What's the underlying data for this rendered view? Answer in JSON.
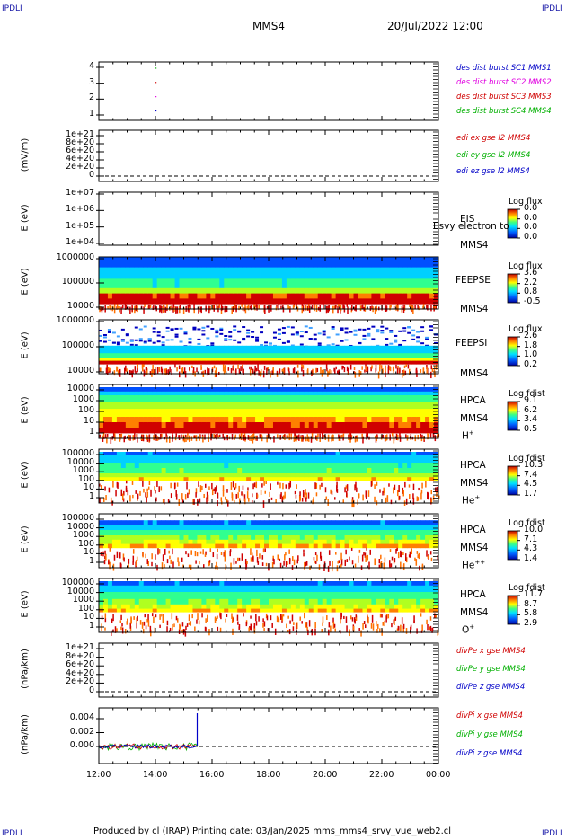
{
  "corners": {
    "tl": "IPDLI",
    "tr": "IPDLI",
    "bl": "IPDLI",
    "br": "IPDLI"
  },
  "title": "MMS4",
  "date": "20/Jul/2022 12:00",
  "footer": "Produced by cl (IRAP)   Printing date: 03/Jan/2025   mms_mms4_srvy_vue_web2.cl",
  "chart_data": {
    "type": "multi-panel",
    "x_ticks": [
      "12:00",
      "14:00",
      "16:00",
      "18:00",
      "20:00",
      "22:00",
      "00:00"
    ],
    "colors": {
      "red": "#d00000",
      "magenta": "#e000e0",
      "green": "#00b000",
      "blue": "#0000c8"
    },
    "panels": [
      {
        "id": "p1",
        "kind": "line",
        "yticks": [
          "4",
          "3",
          "2",
          "1"
        ],
        "legend": [
          {
            "t": "des dist burst SC1 MMS1",
            "c": "blue"
          },
          {
            "t": "des dist burst SC2 MMS2",
            "c": "magenta"
          },
          {
            "t": "des dist burst SC3 MMS3",
            "c": "red"
          },
          {
            "t": "des dist burst SC4 MMS4",
            "c": "green"
          }
        ]
      },
      {
        "id": "p2",
        "kind": "line",
        "ylabel": "(mV/m)",
        "yticks": [
          "1e+21",
          "8e+20",
          "6e+20",
          "4e+20",
          "2e+20",
          "0"
        ],
        "legend": [
          {
            "t": "edi ex gse l2 MMS4",
            "c": "red"
          },
          {
            "t": "edi ey gse l2 MMS4",
            "c": "green"
          },
          {
            "t": "edi ez gse l2 MMS4",
            "c": "blue"
          }
        ]
      },
      {
        "id": "p3",
        "kind": "spec",
        "ylabel": "E (eV)",
        "yticks": [
          "1e+07",
          "1e+06",
          "1e+05",
          "1e+04"
        ],
        "side": [
          "EIS",
          "MMS4"
        ],
        "overlay": "Esvy electron to",
        "cb": {
          "title": "Log flux",
          "ticks": [
            "0.0",
            "0.0",
            "0.0",
            "0.0"
          ]
        }
      },
      {
        "id": "p4",
        "kind": "spec",
        "ylabel": "E (eV)",
        "yticks": [
          "1000000",
          "100000",
          "10000"
        ],
        "side": [
          "FEEPSE",
          "MMS4"
        ],
        "cb": {
          "title": "Log flux",
          "ticks": [
            "3.6",
            "2.2",
            "0.8",
            "-0.5"
          ]
        }
      },
      {
        "id": "p5",
        "kind": "spec",
        "ylabel": "E (eV)",
        "yticks": [
          "1000000",
          "100000",
          "10000"
        ],
        "side": [
          "FEEPSI",
          "MMS4"
        ],
        "cb": {
          "title": "Log flux",
          "ticks": [
            "2.6",
            "1.8",
            "1.0",
            "0.2"
          ]
        }
      },
      {
        "id": "p6",
        "kind": "spec",
        "ylabel": "E (eV)",
        "yticks": [
          "10000",
          "1000",
          "100",
          "10",
          "1"
        ],
        "side": [
          "HPCA",
          "MMS4"
        ],
        "species": "H",
        "sup": "+",
        "cb": {
          "title": "Log fdist",
          "ticks": [
            "9.1",
            "6.2",
            "3.4",
            "0.5"
          ]
        }
      },
      {
        "id": "p7",
        "kind": "spec",
        "ylabel": "E (eV)",
        "yticks": [
          "100000",
          "10000",
          "1000",
          "100",
          "10",
          "1"
        ],
        "side": [
          "HPCA",
          "MMS4"
        ],
        "species": "He",
        "sup": "+",
        "cb": {
          "title": "Log fdist",
          "ticks": [
            "10.3",
            "7.4",
            "4.5",
            "1.7"
          ]
        }
      },
      {
        "id": "p8",
        "kind": "spec",
        "ylabel": "E (eV)",
        "yticks": [
          "100000",
          "10000",
          "1000",
          "100",
          "10",
          "1"
        ],
        "side": [
          "HPCA",
          "MMS4"
        ],
        "species": "He",
        "sup": "++",
        "cb": {
          "title": "Log fdist",
          "ticks": [
            "10.0",
            "7.1",
            "4.3",
            "1.4"
          ]
        }
      },
      {
        "id": "p9",
        "kind": "spec",
        "ylabel": "E (eV)",
        "yticks": [
          "100000",
          "10000",
          "1000",
          "100",
          "10",
          "1"
        ],
        "side": [
          "HPCA",
          "MMS4"
        ],
        "species": "O",
        "sup": "+",
        "cb": {
          "title": "Log fdist",
          "ticks": [
            "11.7",
            "8.7",
            "5.8",
            "2.9"
          ]
        }
      },
      {
        "id": "p10",
        "kind": "line",
        "ylabel": "(nPa/km)",
        "yticks": [
          "1e+21",
          "8e+20",
          "6e+20",
          "4e+20",
          "2e+20",
          "0"
        ],
        "legend": [
          {
            "t": "divPe x gse MMS4",
            "c": "red"
          },
          {
            "t": "divPe y gse MMS4",
            "c": "green"
          },
          {
            "t": "divPe z gse MMS4",
            "c": "blue"
          }
        ]
      },
      {
        "id": "p11",
        "kind": "line",
        "ylabel": "(nPa/km)",
        "yticks": [
          "0.004",
          "0.002",
          "0.000"
        ],
        "legend": [
          {
            "t": "divPi x gse MMS4",
            "c": "red"
          },
          {
            "t": "divPi y gse MMS4",
            "c": "green"
          },
          {
            "t": "divPi z gse MMS4",
            "c": "blue"
          }
        ]
      }
    ]
  }
}
